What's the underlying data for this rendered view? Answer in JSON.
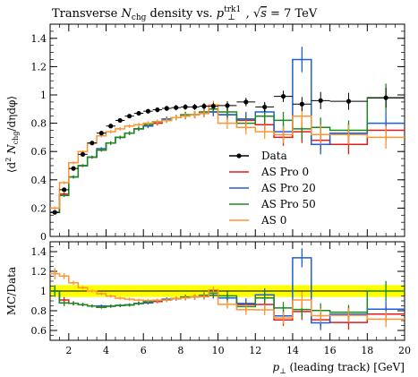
{
  "chart_data": {
    "type": "line",
    "title": "Transverse N_chg density vs. p_⊥^trk1, √s = 7 TeV",
    "title_parts": {
      "prefix": "Transverse ",
      "n": "N",
      "n_sub": "chg",
      "mid": " density vs. ",
      "p": "p",
      "p_sub": "⊥",
      "p_sup": "trk1",
      "sqrt": "√",
      "s": "s",
      "energy": " = 7 TeV"
    },
    "ylabel": "⟨d² N_chg/dηdφ⟩",
    "ylabel_parts": {
      "open": "⟨d",
      "sup2": "2",
      "n": " N",
      "sub": "chg",
      "rest": "/dηdφ⟩"
    },
    "xlabel": "p_⊥ (leading track) [GeV]",
    "xlabel_parts": {
      "p": "p",
      "sub": "⊥",
      "rest": " (leading track) [GeV]"
    },
    "ratio_ylabel": "MC/Data",
    "xlim": [
      1,
      20
    ],
    "ylim": [
      0,
      1.5
    ],
    "ratio_ylim": [
      0.5,
      1.5
    ],
    "x_ticks": [
      "2",
      "4",
      "6",
      "8",
      "10",
      "12",
      "14",
      "16",
      "18",
      "20"
    ],
    "y_ticks": [
      "0",
      "0.2",
      "0.4",
      "0.6",
      "0.8",
      "1",
      "1.2",
      "1.4"
    ],
    "ratio_y_ticks": [
      "0.6",
      "0.8",
      "1",
      "1.2",
      "1.4"
    ],
    "legend_position": "center-right",
    "legend": [
      {
        "label": "Data",
        "color": "#000000",
        "style": "point"
      },
      {
        "label": "AS Pro 0",
        "color": "#e41a1c",
        "style": "line"
      },
      {
        "label": "AS Pro 20",
        "color": "#1f5fd6",
        "style": "line"
      },
      {
        "label": "AS Pro 50",
        "color": "#1a8a1a",
        "style": "line"
      },
      {
        "label": "AS 0",
        "color": "#ff9430",
        "style": "line"
      }
    ],
    "bin_edges": [
      1,
      1.5,
      2,
      2.5,
      3,
      3.5,
      4,
      4.5,
      5,
      5.5,
      6,
      6.5,
      7,
      7.5,
      8,
      8.5,
      9,
      9.5,
      10,
      11,
      12,
      13,
      14,
      15,
      16,
      18,
      20
    ],
    "data": {
      "name": "Data",
      "color": "#000000",
      "values": [
        0.17,
        0.33,
        0.48,
        0.58,
        0.66,
        0.73,
        0.78,
        0.82,
        0.85,
        0.87,
        0.885,
        0.895,
        0.905,
        0.91,
        0.915,
        0.915,
        0.92,
        0.92,
        0.925,
        0.95,
        0.915,
        0.99,
        0.935,
        0.96,
        0.955,
        0.98
      ],
      "errors": [
        0.01,
        0.01,
        0.01,
        0.01,
        0.01,
        0.012,
        0.012,
        0.013,
        0.014,
        0.015,
        0.016,
        0.017,
        0.018,
        0.019,
        0.02,
        0.021,
        0.022,
        0.024,
        0.03,
        0.03,
        0.035,
        0.04,
        0.05,
        0.06,
        0.06,
        0.07
      ]
    },
    "series": [
      {
        "name": "AS Pro 0",
        "color": "#e41a1c",
        "values": [
          0.17,
          0.3,
          0.42,
          0.5,
          0.56,
          0.61,
          0.66,
          0.7,
          0.73,
          0.76,
          0.78,
          0.8,
          0.82,
          0.84,
          0.85,
          0.86,
          0.87,
          0.88,
          0.86,
          0.82,
          0.79,
          0.7,
          0.74,
          0.68,
          0.65,
          0.75
        ],
        "errors": [
          0.01,
          0.01,
          0.01,
          0.01,
          0.01,
          0.01,
          0.012,
          0.012,
          0.013,
          0.014,
          0.015,
          0.016,
          0.017,
          0.02,
          0.022,
          0.025,
          0.028,
          0.03,
          0.04,
          0.05,
          0.05,
          0.06,
          0.08,
          0.07,
          0.07,
          0.08
        ]
      },
      {
        "name": "AS Pro 20",
        "color": "#1f5fd6",
        "values": [
          0.17,
          0.29,
          0.42,
          0.5,
          0.56,
          0.62,
          0.66,
          0.7,
          0.73,
          0.76,
          0.78,
          0.81,
          0.83,
          0.84,
          0.85,
          0.86,
          0.87,
          0.88,
          0.86,
          0.83,
          0.88,
          0.74,
          1.25,
          0.65,
          0.73,
          0.8
        ],
        "errors": [
          0.01,
          0.01,
          0.01,
          0.01,
          0.01,
          0.01,
          0.012,
          0.012,
          0.013,
          0.014,
          0.015,
          0.016,
          0.017,
          0.02,
          0.022,
          0.025,
          0.028,
          0.03,
          0.04,
          0.05,
          0.06,
          0.06,
          0.09,
          0.07,
          0.07,
          0.08
        ]
      },
      {
        "name": "AS Pro 50",
        "color": "#1a8a1a",
        "values": [
          0.17,
          0.29,
          0.42,
          0.5,
          0.56,
          0.61,
          0.66,
          0.7,
          0.73,
          0.76,
          0.79,
          0.81,
          0.82,
          0.84,
          0.86,
          0.86,
          0.88,
          0.9,
          0.88,
          0.8,
          0.85,
          0.82,
          0.76,
          0.77,
          0.75,
          0.98
        ],
        "errors": [
          0.01,
          0.01,
          0.01,
          0.01,
          0.01,
          0.01,
          0.012,
          0.012,
          0.013,
          0.014,
          0.015,
          0.016,
          0.017,
          0.02,
          0.022,
          0.025,
          0.028,
          0.03,
          0.04,
          0.05,
          0.05,
          0.06,
          0.08,
          0.07,
          0.07,
          0.1
        ]
      },
      {
        "name": "AS 0",
        "color": "#ff9430",
        "values": [
          0.2,
          0.38,
          0.52,
          0.6,
          0.66,
          0.71,
          0.74,
          0.76,
          0.78,
          0.79,
          0.8,
          0.81,
          0.82,
          0.84,
          0.85,
          0.86,
          0.87,
          0.93,
          0.8,
          0.77,
          0.74,
          0.72,
          0.85,
          0.72,
          0.72,
          0.7
        ],
        "errors": [
          0.01,
          0.01,
          0.01,
          0.01,
          0.01,
          0.01,
          0.012,
          0.012,
          0.013,
          0.014,
          0.015,
          0.016,
          0.017,
          0.02,
          0.022,
          0.025,
          0.028,
          0.03,
          0.04,
          0.05,
          0.05,
          0.06,
          0.08,
          0.07,
          0.07,
          0.08
        ]
      }
    ],
    "ratio_band": {
      "color": "#ffff00"
    }
  }
}
